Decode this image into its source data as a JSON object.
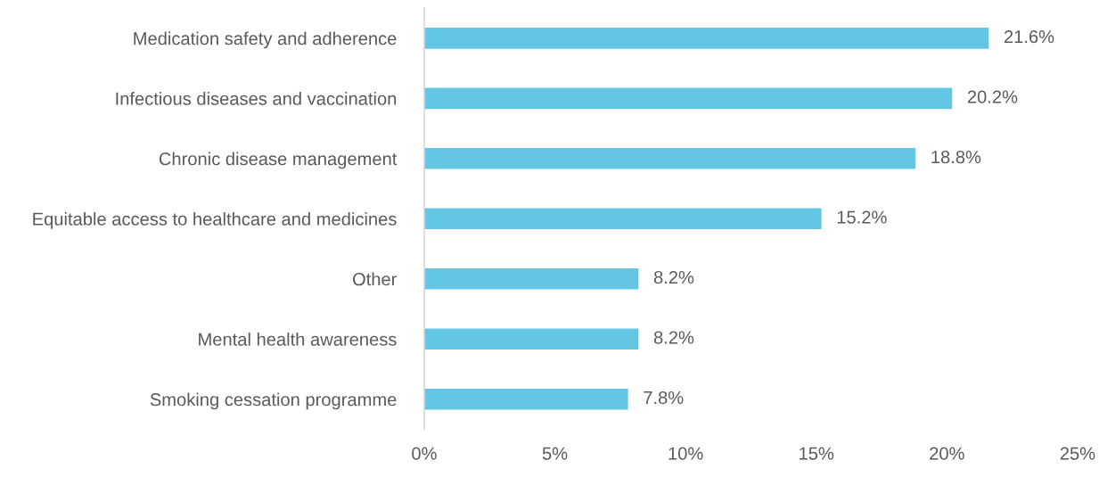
{
  "chart_data": {
    "type": "bar",
    "orientation": "horizontal",
    "categories": [
      "Medication safety and adherence",
      "Infectious diseases and vaccination",
      "Chronic disease management",
      "Equitable access to healthcare and medicines",
      "Other",
      "Mental health awareness",
      "Smoking cessation programme"
    ],
    "values": [
      21.6,
      20.2,
      18.8,
      15.2,
      8.2,
      8.2,
      7.8
    ],
    "value_labels": [
      "21.6%",
      "20.2%",
      "18.8%",
      "15.2%",
      "8.2%",
      "8.2%",
      "7.8%"
    ],
    "color": "#63c6e5",
    "xlim": [
      0,
      25
    ],
    "xticks": [
      {
        "value": 0,
        "label": "0%"
      },
      {
        "value": 5,
        "label": "5%"
      },
      {
        "value": 10,
        "label": "10%"
      },
      {
        "value": 15,
        "label": "15%"
      },
      {
        "value": 20,
        "label": "20%"
      },
      {
        "value": 25,
        "label": "25%"
      }
    ],
    "grid": false,
    "legend": false
  }
}
